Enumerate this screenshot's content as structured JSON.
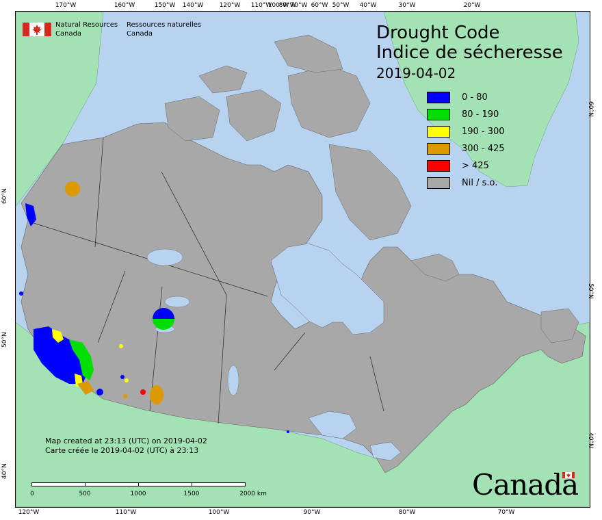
{
  "header": {
    "agency_en_1": "Natural Resources",
    "agency_en_2": "Canada",
    "agency_fr_1": "Ressources naturelles",
    "agency_fr_2": "Canada",
    "title_en": "Drought Code",
    "title_fr": "Indice de sécheresse",
    "date": "2019-04-02"
  },
  "legend": [
    {
      "label": "0 - 80",
      "color": "#0000ff"
    },
    {
      "label": "80 - 190",
      "color": "#00dd00"
    },
    {
      "label": "190 - 300",
      "color": "#ffff00"
    },
    {
      "label": "300 - 425",
      "color": "#dd9900"
    },
    {
      "label": "> 425",
      "color": "#ff0000"
    },
    {
      "label": "Nil / s.o.",
      "color": "#a8a8a8"
    }
  ],
  "graticule": {
    "top_labels": [
      "170°W",
      "160°W",
      "150°W",
      "140°W",
      "120°W",
      "110°W",
      "100°W",
      "80°W",
      "70°W",
      "60°W",
      "50°W",
      "40°W",
      "30°W",
      "20°W"
    ],
    "bottom_labels": [
      "120°W",
      "110°W",
      "100°W",
      "90°W",
      "80°W",
      "70°W"
    ],
    "left_labels": [
      "60°N",
      "50°N",
      "40°N"
    ],
    "right_labels": [
      "60°N",
      "50°N",
      "40°N"
    ]
  },
  "credits": {
    "line_en": "Map created at 23:13 (UTC) on 2019-04-02",
    "line_fr": "Carte créée le 2019-04-02 (UTC) à 23:13"
  },
  "scale_bar": {
    "labels": [
      "0",
      "500",
      "1000",
      "1500",
      "2000 km"
    ]
  },
  "wordmark": "Canada",
  "colors": {
    "ocean": "#b7d3f0",
    "foreign_land": "#a3e2b4",
    "nil_land": "#a8a8a8"
  }
}
